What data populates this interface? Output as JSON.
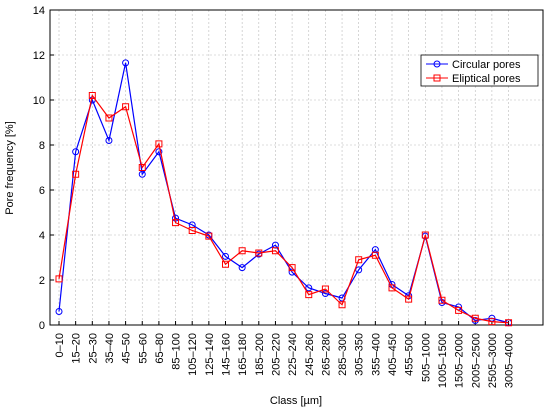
{
  "chart_data": {
    "type": "line",
    "x_label": "Class [µm]",
    "y_label": "Pore frequency [%]",
    "categories": [
      "0–10",
      "15–20",
      "25–30",
      "35–40",
      "45–50",
      "55–60",
      "65–80",
      "85–100",
      "105–120",
      "125–140",
      "145–160",
      "165–180",
      "185–200",
      "205–220",
      "225–240",
      "245–260",
      "265–280",
      "285–300",
      "305–350",
      "355–400",
      "405–450",
      "455–500",
      "505–1000",
      "1005–1500",
      "1505–2000",
      "2005–2500",
      "2505–3000",
      "3005–4000"
    ],
    "series": [
      {
        "name": "Circular pores",
        "color": "#0000ff",
        "marker": "circle",
        "values": [
          0.6,
          7.7,
          10.0,
          8.2,
          11.65,
          6.7,
          7.7,
          4.75,
          4.45,
          4.0,
          3.05,
          2.55,
          3.15,
          3.55,
          2.35,
          1.65,
          1.4,
          1.2,
          2.45,
          3.35,
          1.8,
          1.3,
          3.95,
          1.0,
          0.8,
          0.2,
          0.3,
          0.1
        ]
      },
      {
        "name": "Eliptical pores",
        "color": "#ff0000",
        "marker": "square",
        "values": [
          2.05,
          6.7,
          10.2,
          9.2,
          9.7,
          7.0,
          8.05,
          4.55,
          4.2,
          3.95,
          2.7,
          3.3,
          3.2,
          3.3,
          2.55,
          1.35,
          1.6,
          0.9,
          2.9,
          3.1,
          1.65,
          1.15,
          4.0,
          1.1,
          0.65,
          0.3,
          0.15,
          0.1
        ]
      }
    ],
    "ylim": [
      0,
      14
    ],
    "yticks": [
      0,
      2,
      4,
      6,
      8,
      10,
      12,
      14
    ],
    "grid": true,
    "legend": "upper right"
  }
}
